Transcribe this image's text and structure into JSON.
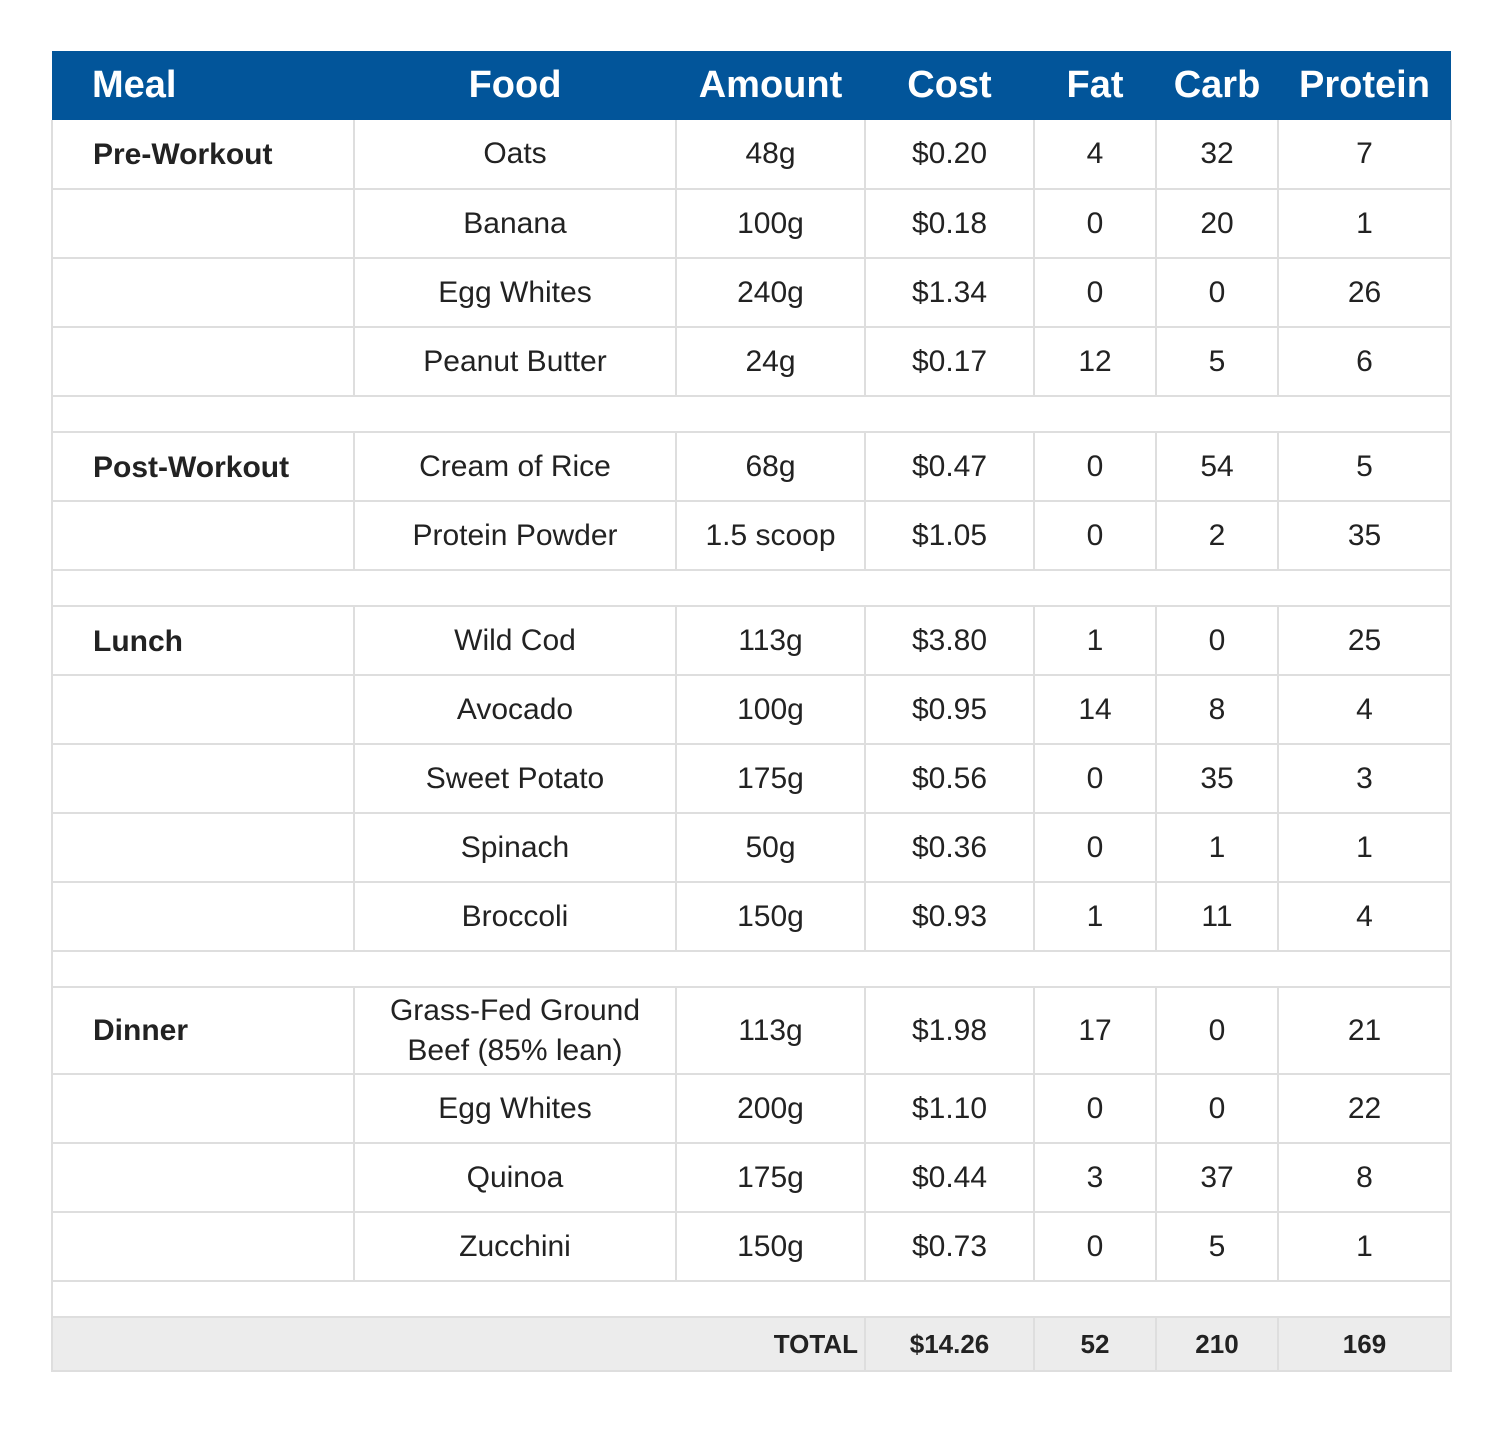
{
  "headers": {
    "meal": "Meal",
    "food": "Food",
    "amount": "Amount",
    "cost": "Cost",
    "fat": "Fat",
    "carb": "Carb",
    "protein": "Protein"
  },
  "rows": [
    {
      "meal": "Pre-Workout",
      "food": "Oats",
      "amount": "48g",
      "cost": "$0.20",
      "fat": "4",
      "carb": "32",
      "protein": "7"
    },
    {
      "meal": "",
      "food": "Banana",
      "amount": "100g",
      "cost": "$0.18",
      "fat": "0",
      "carb": "20",
      "protein": "1"
    },
    {
      "meal": "",
      "food": "Egg Whites",
      "amount": "240g",
      "cost": "$1.34",
      "fat": "0",
      "carb": "0",
      "protein": "26"
    },
    {
      "meal": "",
      "food": "Peanut Butter",
      "amount": "24g",
      "cost": "$0.17",
      "fat": "12",
      "carb": "5",
      "protein": "6"
    },
    {
      "meal": "Post-Workout",
      "food": "Cream of Rice",
      "amount": "68g",
      "cost": "$0.47",
      "fat": "0",
      "carb": "54",
      "protein": "5"
    },
    {
      "meal": "",
      "food": "Protein Powder",
      "amount": "1.5 scoop",
      "cost": "$1.05",
      "fat": "0",
      "carb": "2",
      "protein": "35"
    },
    {
      "meal": "Lunch",
      "food": "Wild Cod",
      "amount": "113g",
      "cost": "$3.80",
      "fat": "1",
      "carb": "0",
      "protein": "25"
    },
    {
      "meal": "",
      "food": "Avocado",
      "amount": "100g",
      "cost": "$0.95",
      "fat": "14",
      "carb": "8",
      "protein": "4"
    },
    {
      "meal": "",
      "food": "Sweet Potato",
      "amount": "175g",
      "cost": "$0.56",
      "fat": "0",
      "carb": "35",
      "protein": "3"
    },
    {
      "meal": "",
      "food": "Spinach",
      "amount": "50g",
      "cost": "$0.36",
      "fat": "0",
      "carb": "1",
      "protein": "1"
    },
    {
      "meal": "",
      "food": "Broccoli",
      "amount": "150g",
      "cost": "$0.93",
      "fat": "1",
      "carb": "11",
      "protein": "4"
    },
    {
      "meal": "Dinner",
      "food": "Grass-Fed Ground Beef (85% lean)",
      "amount": "113g",
      "cost": "$1.98",
      "fat": "17",
      "carb": "0",
      "protein": "21"
    },
    {
      "meal": "",
      "food": "Egg Whites",
      "amount": "200g",
      "cost": "$1.10",
      "fat": "0",
      "carb": "0",
      "protein": "22"
    },
    {
      "meal": "",
      "food": "Quinoa",
      "amount": "175g",
      "cost": "$0.44",
      "fat": "3",
      "carb": "37",
      "protein": "8"
    },
    {
      "meal": "",
      "food": "Zucchini",
      "amount": "150g",
      "cost": "$0.73",
      "fat": "0",
      "carb": "5",
      "protein": "1"
    }
  ],
  "total": {
    "label": "TOTAL",
    "cost": "$14.26",
    "fat": "52",
    "carb": "210",
    "protein": "169"
  }
}
